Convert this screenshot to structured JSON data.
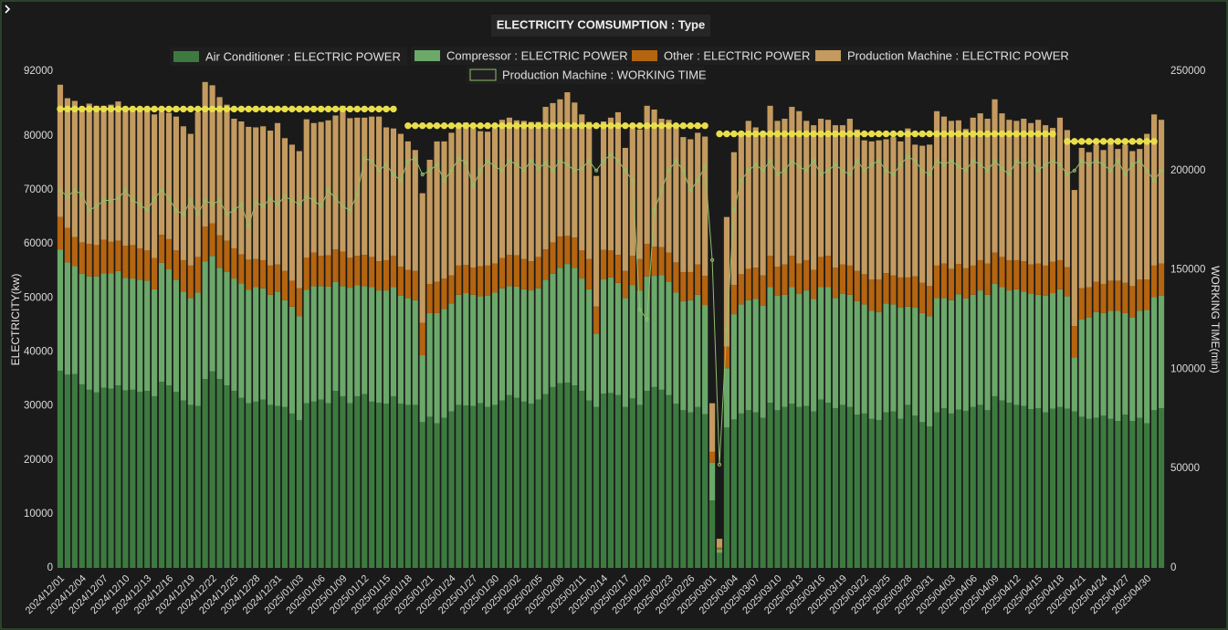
{
  "chart_data": {
    "type": "bar",
    "title": "ELECTRICITY COMSUMPTION : Type",
    "y_label": "ELECTRICITY(kw)",
    "y2_label": "WORKING TIME(min)",
    "ylim": [
      0,
      92000
    ],
    "yticks": [
      0,
      10000,
      20000,
      30000,
      40000,
      50000,
      60000,
      70000,
      80000,
      92000
    ],
    "y2lim": [
      0,
      250000
    ],
    "y2ticks": [
      0,
      50000,
      100000,
      150000,
      200000,
      250000
    ],
    "grid": false,
    "stacked": true,
    "legend": "top",
    "categories": [
      "2024/12/01",
      null,
      null,
      "2024/12/04",
      null,
      null,
      "2024/12/07",
      null,
      null,
      "2024/12/10",
      null,
      null,
      "2024/12/13",
      null,
      null,
      "2024/12/16",
      null,
      null,
      "2024/12/19",
      null,
      null,
      "2024/12/22",
      null,
      null,
      "2024/12/25",
      null,
      null,
      "2024/12/28",
      null,
      null,
      "2024/12/31",
      null,
      null,
      "2025/01/03",
      null,
      null,
      "2025/01/06",
      null,
      null,
      "2025/01/09",
      null,
      null,
      "2025/01/12",
      null,
      null,
      "2025/01/15",
      null,
      null,
      "2025/01/18",
      null,
      null,
      "2025/01/21",
      null,
      null,
      "2025/01/24",
      null,
      null,
      "2025/01/27",
      null,
      null,
      "2025/01/30",
      null,
      null,
      "2025/02/02",
      null,
      null,
      "2025/02/05",
      null,
      null,
      "2025/02/08",
      null,
      null,
      "2025/02/11",
      null,
      null,
      "2025/02/14",
      null,
      null,
      "2025/02/17",
      null,
      null,
      "2025/02/20",
      null,
      null,
      "2025/02/23",
      null,
      null,
      "2025/02/26",
      null,
      null,
      "2025/03/01",
      null,
      null,
      "2025/03/04",
      null,
      null,
      "2025/03/07",
      null,
      null,
      "2025/03/10",
      null,
      null,
      "2025/03/13",
      null,
      null,
      "2025/03/16",
      null,
      null,
      "2025/03/19",
      null,
      null,
      "2025/03/22",
      null,
      null,
      "2025/03/25",
      null,
      null,
      "2025/03/28",
      null,
      null,
      "2025/03/31",
      null,
      null,
      "2025/04/03",
      null,
      null,
      "2025/04/06",
      null,
      null,
      "2025/04/09",
      null,
      null,
      "2025/04/12",
      null,
      null,
      "2025/04/15",
      null,
      null,
      "2025/04/18",
      null,
      null,
      "2025/04/21",
      null,
      null,
      "2025/04/24",
      null,
      null,
      "2025/04/27",
      null,
      null,
      "2025/04/30",
      null,
      null
    ],
    "series": [
      {
        "name": "Air Conditioner : ELECTRIC POWER",
        "type": "bar",
        "color": "#3d7a40",
        "values": [
          36500,
          35800,
          35900,
          34000,
          33000,
          32500,
          33400,
          33200,
          33800,
          32900,
          33000,
          32600,
          32800,
          31800,
          34500,
          33800,
          32600,
          31000,
          30200,
          30000,
          35000,
          36400,
          35000,
          33800,
          32800,
          31500,
          30500,
          30800,
          31200,
          30200,
          30000,
          29800,
          28600,
          27400,
          30500,
          30800,
          31200,
          30500,
          32800,
          31800,
          30500,
          31800,
          32200,
          30800,
          30600,
          30400,
          31800,
          30400,
          30200,
          30200,
          27000,
          28000,
          26800,
          27800,
          29000,
          30200,
          30100,
          30000,
          30500,
          29800,
          30200,
          31000,
          32000,
          31500,
          30800,
          30400,
          31200,
          32200,
          33500,
          34200,
          34300,
          33800,
          32800,
          31000,
          29800,
          32300,
          32400,
          32000,
          29800,
          31400,
          30200,
          32800,
          33500,
          33000,
          32000,
          30400,
          29200,
          28800,
          29800,
          28500,
          12500,
          2800,
          26000,
          27500,
          28600,
          29200,
          28800,
          27800,
          30600,
          29200,
          29800,
          30400,
          29800,
          30000,
          29000,
          31200,
          30600,
          29600,
          30200,
          29800,
          28400,
          28600,
          27600,
          27400,
          28800,
          29000,
          27600,
          30200,
          28200,
          27000,
          26200,
          28800,
          29600,
          28600,
          29300,
          29100,
          29800,
          30200,
          29200,
          31800,
          31000,
          30600,
          30200,
          30000,
          29400,
          29600,
          28800,
          29500,
          29800,
          29500,
          29000,
          28000,
          27600,
          27800,
          28200,
          27600,
          27200,
          28400,
          27200,
          27800,
          26800,
          29200,
          29600
        ]
      },
      {
        "name": "Compressor : ELECTRIC POWER",
        "type": "bar",
        "color": "#6ba86a",
        "values": [
          22500,
          20800,
          20000,
          20500,
          21000,
          21500,
          21200,
          21400,
          21200,
          20800,
          20600,
          20800,
          20400,
          19800,
          22000,
          21500,
          20800,
          20200,
          19800,
          21000,
          21800,
          21400,
          20600,
          21000,
          20800,
          21200,
          21000,
          21200,
          20600,
          20400,
          21200,
          19800,
          19800,
          19200,
          21000,
          21400,
          21000,
          21600,
          20200,
          20400,
          21400,
          20600,
          20000,
          21200,
          20800,
          21000,
          20200,
          20000,
          19800,
          19400,
          12400,
          19200,
          20400,
          20200,
          20000,
          20400,
          20800,
          20600,
          19800,
          20600,
          20800,
          20800,
          20200,
          20600,
          20800,
          21000,
          20600,
          21200,
          21000,
          21400,
          22000,
          21800,
          20800,
          20600,
          13600,
          21200,
          21400,
          20800,
          20200,
          21000,
          21200,
          21200,
          20600,
          21200,
          21000,
          20600,
          20200,
          20800,
          20800,
          20200,
          7000,
          600,
          11000,
          19500,
          20200,
          20400,
          21000,
          20800,
          21400,
          21200,
          20800,
          21600,
          21000,
          21400,
          20800,
          20800,
          21400,
          20400,
          20600,
          20800,
          21000,
          20200,
          20000,
          20000,
          20200,
          19800,
          20600,
          18200,
          20000,
          20200,
          20400,
          21200,
          20400,
          21000,
          21400,
          20800,
          20800,
          21200,
          21400,
          20800,
          21000,
          20800,
          21400,
          21200,
          21400,
          21000,
          21600,
          21400,
          21800,
          20800,
          10000,
          18000,
          18800,
          19600,
          19000,
          20000,
          20400,
          18800,
          19200,
          19800,
          21000,
          21000,
          20800
        ]
      },
      {
        "name": "Other : ELECTRIC POWER",
        "type": "bar",
        "color": "#b5640f",
        "values": [
          6000,
          6400,
          5400,
          5800,
          6000,
          5800,
          6200,
          5800,
          5600,
          6000,
          6200,
          5800,
          5600,
          5800,
          5200,
          5600,
          5400,
          5800,
          6000,
          6600,
          6400,
          6000,
          6000,
          5800,
          5600,
          5400,
          5600,
          5200,
          5200,
          5400,
          5000,
          5400,
          4800,
          5200,
          6000,
          6200,
          5600,
          5800,
          6000,
          6400,
          5600,
          5400,
          5800,
          5600,
          5400,
          5600,
          5800,
          5400,
          5200,
          5400,
          6000,
          5400,
          5800,
          5600,
          5200,
          5400,
          5200,
          5000,
          5600,
          5600,
          5400,
          5600,
          5800,
          5800,
          5600,
          5400,
          5800,
          5600,
          5800,
          5800,
          5200,
          5600,
          5200,
          5600,
          5000,
          5400,
          5000,
          5200,
          5000,
          5400,
          5800,
          6000,
          5400,
          5200,
          5400,
          5600,
          5400,
          5200,
          5600,
          5400,
          2000,
          400,
          4000,
          5400,
          5600,
          5800,
          5800,
          5600,
          5800,
          5400,
          5600,
          5800,
          5600,
          5600,
          5400,
          5600,
          5800,
          5600,
          5400,
          5400,
          5600,
          5600,
          5800,
          6000,
          5600,
          5400,
          5600,
          5400,
          5800,
          5600,
          5600,
          6000,
          6400,
          5800,
          5600,
          5600,
          5400,
          5600,
          5800,
          5800,
          5600,
          5600,
          5400,
          5600,
          5400,
          5800,
          5600,
          5800,
          5400,
          5400,
          5800,
          5800,
          5600,
          5600,
          5400,
          5600,
          5600,
          5600,
          5800,
          5800,
          5600,
          5800,
          6000
        ]
      },
      {
        "name": "Production Machine : ELECTRIC POWER",
        "type": "bar",
        "color": "#c39a5f",
        "values": [
          24500,
          24000,
          25200,
          25000,
          26000,
          25800,
          24800,
          25400,
          25800,
          25600,
          25400,
          26000,
          26400,
          26600,
          22800,
          23400,
          24800,
          24800,
          24400,
          26800,
          26800,
          25600,
          25600,
          25200,
          24000,
          24600,
          24600,
          24400,
          24800,
          25000,
          26200,
          24600,
          25200,
          25400,
          25600,
          24000,
          24800,
          25000,
          24800,
          27000,
          25800,
          25600,
          25400,
          26000,
          26800,
          24600,
          23600,
          24600,
          23800,
          22400,
          24000,
          23000,
          26000,
          25400,
          26400,
          26000,
          26400,
          25800,
          25000,
          24800,
          25000,
          25600,
          25400,
          25000,
          25600,
          25800,
          25000,
          26400,
          25800,
          25400,
          26600,
          25000,
          25200,
          25400,
          24200,
          23800,
          24600,
          26400,
          22800,
          23600,
          24000,
          25600,
          25400,
          23800,
          24600,
          25200,
          25000,
          24600,
          24400,
          25800,
          9000,
          1600,
          24000,
          24600,
          26400,
          27400,
          26000,
          26600,
          27800,
          27000,
          27000,
          27600,
          28200,
          25800,
          26800,
          25600,
          25200,
          26400,
          25800,
          27200,
          26200,
          24800,
          25600,
          25800,
          24800,
          25600,
          25200,
          27600,
          24400,
          25400,
          26200,
          28600,
          27200,
          27400,
          26600,
          25800,
          27400,
          27200,
          26800,
          28400,
          26600,
          26000,
          25800,
          26400,
          26200,
          26600,
          26000,
          24800,
          26400,
          25400,
          25200,
          26000,
          25000,
          25400,
          24800,
          25600,
          24400,
          25600,
          25000,
          24200,
          27000,
          28000,
          26600
        ]
      },
      {
        "name": "Production Machine : WORKING TIME",
        "type": "line",
        "axis": "y2",
        "color": "#8fbf6a",
        "marker": true,
        "values": [
          190000,
          187000,
          190000,
          188000,
          180000,
          182000,
          185000,
          185000,
          186000,
          190000,
          185000,
          183000,
          180000,
          186000,
          190000,
          186000,
          180000,
          178000,
          185000,
          178000,
          185000,
          183000,
          185000,
          178000,
          180000,
          183000,
          172000,
          184000,
          182000,
          186000,
          183000,
          187000,
          185000,
          183000,
          187000,
          185000,
          182000,
          190000,
          186000,
          182000,
          180000,
          188000,
          206000,
          205000,
          200000,
          203000,
          198000,
          195000,
          205000,
          206000,
          198000,
          200000,
          203000,
          195000,
          200000,
          206000,
          204000,
          192000,
          200000,
          205000,
          202000,
          200000,
          205000,
          203000,
          200000,
          205000,
          201000,
          204000,
          200000,
          205000,
          203000,
          200000,
          201000,
          205000,
          200000,
          205000,
          208000,
          205000,
          200000,
          195000,
          130000,
          125000,
          180000,
          190000,
          200000,
          205000,
          200000,
          190000,
          195000,
          202000,
          155000,
          52000,
          120000,
          180000,
          195000,
          200000,
          203000,
          200000,
          205000,
          198000,
          200000,
          205000,
          202000,
          200000,
          205000,
          198000,
          200000,
          203000,
          200000,
          198000,
          205000,
          200000,
          203000,
          205000,
          200000,
          198000,
          203000,
          207000,
          205000,
          200000,
          198000,
          205000,
          203000,
          205000,
          202000,
          200000,
          205000,
          203000,
          200000,
          205000,
          201000,
          198000,
          205000,
          203000,
          205000,
          200000,
          203000,
          205000,
          203000,
          198000,
          200000,
          205000,
          203000,
          205000,
          203000,
          200000,
          205000,
          198000,
          203000,
          205000,
          200000,
          195000,
          200000
        ]
      },
      {
        "type": "line",
        "color": "#e8de4c",
        "marker": true,
        "values": [
          85000,
          85000,
          85000,
          85000,
          85000,
          85000,
          85000,
          85000,
          85000,
          85000,
          85000,
          85000,
          85000,
          85000,
          85000,
          85000,
          85000,
          85000,
          85000,
          85000,
          85000,
          85000,
          85000,
          85000,
          85000,
          85000,
          85000,
          85000,
          85000,
          85000,
          85000,
          85000,
          85000,
          85000,
          85000,
          85000,
          85000,
          85000,
          85000,
          85000,
          85000,
          85000,
          85000,
          85000,
          85000,
          85000,
          85000,
          null,
          81900,
          81900,
          81900,
          81900,
          81900,
          81900,
          81900,
          81900,
          81900,
          81900,
          81900,
          81900,
          81900,
          81900,
          81900,
          81900,
          81900,
          81900,
          81900,
          81900,
          81900,
          81900,
          81900,
          81900,
          81900,
          81900,
          81900,
          81900,
          81900,
          81900,
          81900,
          81900,
          81900,
          81900,
          81900,
          81900,
          81900,
          81900,
          81900,
          81900,
          81900,
          81900,
          null,
          80400,
          80400,
          80400,
          80400,
          80400,
          80400,
          80400,
          80400,
          80400,
          80400,
          80400,
          80400,
          80400,
          80400,
          80400,
          80400,
          80400,
          80400,
          80400,
          80400,
          80400,
          80400,
          80400,
          80400,
          80400,
          80400,
          80400,
          80400,
          80400,
          80400,
          80400,
          80400,
          80400,
          80400,
          80400,
          80400,
          80400,
          80400,
          80400,
          80400,
          80400,
          80400,
          80400,
          80400,
          80400,
          80400,
          80400,
          null,
          79000,
          79000,
          79000,
          79000,
          79000,
          79000,
          79000,
          79000,
          79000,
          79000,
          79000,
          79000,
          79000,
          null
        ]
      }
    ]
  }
}
